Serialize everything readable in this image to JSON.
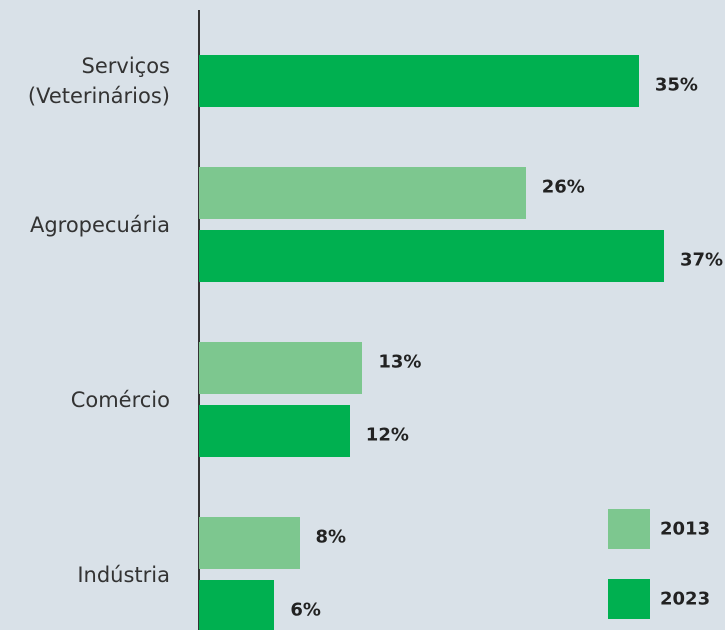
{
  "chart_data": {
    "type": "bar",
    "orientation": "horizontal",
    "categories": [
      "Serviços (Veterinários)",
      "Agropecuária",
      "Comércio",
      "Indústria"
    ],
    "series": [
      {
        "name": "2013",
        "color": "#7dc78f",
        "values": [
          null,
          26,
          13,
          8
        ],
        "value_labels": [
          null,
          "26%",
          "13%",
          "8%"
        ]
      },
      {
        "name": "2023",
        "color": "#00b050",
        "values": [
          35,
          37,
          12,
          6
        ],
        "value_labels": [
          "35%",
          "37%",
          "12%",
          "6%"
        ]
      }
    ],
    "legend": "lower right"
  }
}
